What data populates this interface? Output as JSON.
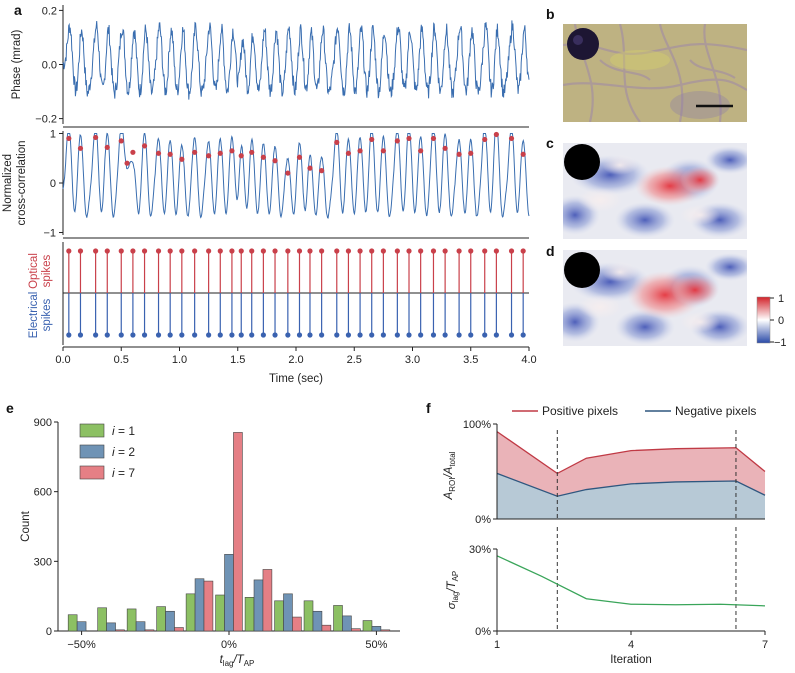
{
  "panel_labels": {
    "a": "a",
    "b": "b",
    "c": "c",
    "d": "d",
    "e": "e",
    "f": "f"
  },
  "colors": {
    "trace_blue": "#3a6eb0",
    "optical_red": "#c9404a",
    "electrical_blue": "#3a62b0",
    "i1_green": "#8cc063",
    "i2_blue": "#6f93b5",
    "i7_red": "#e57f85",
    "pos_fill": "#eab3b8",
    "pos_line": "#c03a45",
    "neg_fill": "#b7c9d6",
    "neg_line": "#2f577f",
    "sigma_line": "#3aa55a"
  },
  "chart_data": [
    {
      "id": "a1",
      "type": "line",
      "ylabel": "Phase (mrad)",
      "xlim": [
        0,
        4
      ],
      "ylim": [
        -0.22,
        0.22
      ],
      "yticks": [
        "0.2",
        "0.0",
        "−0.2"
      ],
      "ytick_values": [
        0.2,
        0.0,
        -0.2
      ],
      "spike_times": [
        0.05,
        0.15,
        0.28,
        0.38,
        0.5,
        0.6,
        0.7,
        0.82,
        0.92,
        1.02,
        1.13,
        1.25,
        1.35,
        1.45,
        1.53,
        1.62,
        1.72,
        1.82,
        1.93,
        2.03,
        2.12,
        2.22,
        2.35,
        2.45,
        2.55,
        2.65,
        2.75,
        2.87,
        2.97,
        3.07,
        3.18,
        3.28,
        3.4,
        3.5,
        3.62,
        3.72,
        3.85,
        3.95
      ],
      "waveform_amplitude": 0.11,
      "noise_amplitude": 0.03
    },
    {
      "id": "a2",
      "type": "line",
      "ylabel": [
        "Normalized",
        "cross-correlation"
      ],
      "xlim": [
        0,
        4
      ],
      "ylim": [
        -1.05,
        1.05
      ],
      "yticks": [
        "1",
        "0",
        "−1"
      ],
      "ytick_values": [
        1,
        0,
        -1
      ],
      "peaks": [
        [
          0.05,
          0.9
        ],
        [
          0.15,
          0.7
        ],
        [
          0.28,
          0.92
        ],
        [
          0.38,
          0.72
        ],
        [
          0.5,
          0.85
        ],
        [
          0.55,
          0.4
        ],
        [
          0.6,
          0.62
        ],
        [
          0.7,
          0.75
        ],
        [
          0.82,
          0.6
        ],
        [
          0.92,
          0.58
        ],
        [
          1.02,
          0.48
        ],
        [
          1.13,
          0.62
        ],
        [
          1.25,
          0.55
        ],
        [
          1.35,
          0.6
        ],
        [
          1.45,
          0.65
        ],
        [
          1.53,
          0.55
        ],
        [
          1.62,
          0.62
        ],
        [
          1.72,
          0.52
        ],
        [
          1.82,
          0.45
        ],
        [
          1.93,
          0.2
        ],
        [
          2.03,
          0.52
        ],
        [
          2.12,
          0.3
        ],
        [
          2.22,
          0.25
        ],
        [
          2.35,
          0.82
        ],
        [
          2.45,
          0.6
        ],
        [
          2.55,
          0.65
        ],
        [
          2.65,
          0.88
        ],
        [
          2.75,
          0.65
        ],
        [
          2.87,
          0.85
        ],
        [
          2.97,
          0.9
        ],
        [
          3.07,
          0.65
        ],
        [
          3.18,
          0.9
        ],
        [
          3.28,
          0.7
        ],
        [
          3.4,
          0.58
        ],
        [
          3.5,
          0.6
        ],
        [
          3.62,
          0.88
        ],
        [
          3.72,
          0.98
        ],
        [
          3.85,
          0.9
        ],
        [
          3.95,
          0.58
        ]
      ]
    },
    {
      "id": "a3",
      "type": "stem",
      "ylabel_optical": [
        "Optical",
        "spikes"
      ],
      "ylabel_electrical": [
        "Electrical",
        "spikes"
      ],
      "xlabel": "Time (sec)",
      "xlim": [
        0,
        4
      ],
      "xticks": [
        "0.0",
        "0.5",
        "1.0",
        "1.5",
        "2.0",
        "2.5",
        "3.0",
        "3.5",
        "4.0"
      ],
      "xtick_values": [
        0,
        0.5,
        1,
        1.5,
        2,
        2.5,
        3,
        3.5,
        4
      ],
      "optical_times": [
        0.05,
        0.15,
        0.28,
        0.38,
        0.5,
        0.6,
        0.7,
        0.82,
        0.92,
        1.02,
        1.13,
        1.25,
        1.35,
        1.45,
        1.53,
        1.62,
        1.72,
        1.82,
        1.93,
        2.03,
        2.12,
        2.22,
        2.35,
        2.45,
        2.55,
        2.65,
        2.75,
        2.87,
        2.97,
        3.07,
        3.18,
        3.28,
        3.4,
        3.5,
        3.62,
        3.72,
        3.85,
        3.95
      ],
      "electrical_times": [
        0.05,
        0.15,
        0.28,
        0.38,
        0.5,
        0.6,
        0.7,
        0.82,
        0.92,
        1.02,
        1.13,
        1.25,
        1.35,
        1.45,
        1.53,
        1.62,
        1.72,
        1.82,
        1.93,
        2.03,
        2.12,
        2.22,
        2.35,
        2.45,
        2.55,
        2.65,
        2.75,
        2.87,
        2.97,
        3.07,
        3.18,
        3.28,
        3.4,
        3.5,
        3.62,
        3.72,
        3.85,
        3.95
      ]
    },
    {
      "id": "e",
      "type": "bar",
      "xlabel_main": "t",
      "xlabel_sub": "lag",
      "xlabel_slash": "/T",
      "xlabel_sub2": "AP",
      "ylabel": "Count",
      "ylim": [
        0,
        900
      ],
      "yticks": [
        "900",
        "600",
        "300",
        "0"
      ],
      "ytick_values": [
        900,
        600,
        300,
        0
      ],
      "xticks": [
        "−50%",
        "0%",
        "50%"
      ],
      "xtick_values": [
        -50,
        0,
        50
      ],
      "xlim": [
        -58,
        58
      ],
      "bin_centers": [
        -50,
        -40,
        -30,
        -20,
        -10,
        0,
        10,
        20,
        30,
        40,
        50
      ],
      "bin_width": 10,
      "series": [
        {
          "name": "i = 1",
          "name_italic": "i",
          "name_rest": " = 1",
          "color_key": "i1_green",
          "values": [
            70,
            100,
            95,
            105,
            160,
            155,
            145,
            130,
            130,
            110,
            45
          ]
        },
        {
          "name": "i = 2",
          "name_italic": "i",
          "name_rest": " = 2",
          "color_key": "i2_blue",
          "values": [
            40,
            35,
            40,
            85,
            225,
            330,
            220,
            160,
            85,
            65,
            20
          ]
        },
        {
          "name": "i = 7",
          "name_italic": "i",
          "name_rest": " = 7",
          "color_key": "i7_red",
          "values": [
            0,
            5,
            5,
            15,
            215,
            855,
            265,
            60,
            25,
            10,
            5
          ]
        }
      ]
    },
    {
      "id": "f1",
      "type": "area",
      "ylabel": "A_ROI/A_total",
      "ylim": [
        0,
        100
      ],
      "yticks": [
        "100%",
        "0%"
      ],
      "ytick_values": [
        100,
        0
      ],
      "x": [
        1,
        2.35,
        3,
        4,
        5,
        6.35,
        7
      ],
      "series": [
        {
          "name": "Positive pixels",
          "color_key": "pos_line",
          "fill_key": "pos_fill",
          "values": [
            92,
            48,
            64,
            72,
            74,
            75,
            50
          ]
        },
        {
          "name": "Negative pixels",
          "color_key": "neg_line",
          "fill_key": "neg_fill",
          "values": [
            48,
            24,
            31,
            37,
            39,
            40,
            25
          ]
        }
      ],
      "vlines": [
        2.35,
        6.35
      ]
    },
    {
      "id": "f2",
      "type": "line",
      "ylabel": "σ_lag/T_AP",
      "xlabel": "Iteration",
      "ylim": [
        0,
        30
      ],
      "yticks": [
        "30%",
        "0%"
      ],
      "ytick_values": [
        30,
        0
      ],
      "xlim": [
        1,
        7
      ],
      "xticks": [
        "1",
        "4",
        "7"
      ],
      "xtick_values": [
        1,
        4,
        7
      ],
      "x": [
        1,
        2,
        3,
        4,
        5,
        6,
        7
      ],
      "values": [
        27.5,
        20,
        11.8,
        9.8,
        9.6,
        9.8,
        9.2
      ],
      "vlines": [
        2.35,
        6.35
      ]
    },
    {
      "id": "colorbar",
      "type": "heatmap",
      "ticks": [
        "1",
        "0",
        "−1"
      ],
      "tick_values": [
        1,
        0,
        -1
      ],
      "colors": [
        "#d2232a",
        "#ffffff",
        "#2a4aa8"
      ]
    }
  ],
  "images": {
    "b": {
      "description_key": "brightfield"
    },
    "c": {
      "description_key": "correlation-map-c"
    },
    "d": {
      "description_key": "correlation-map-d"
    }
  }
}
